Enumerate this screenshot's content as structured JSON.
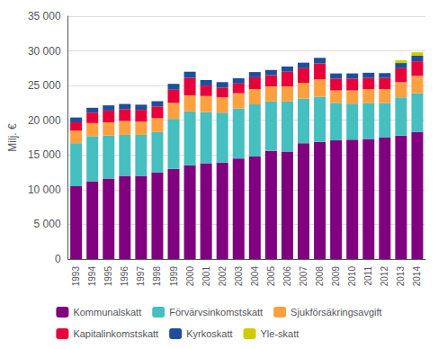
{
  "chart_data": {
    "type": "bar",
    "stacked": true,
    "grid": true,
    "legend": "bottom",
    "ylabel": "Milj. €",
    "categories": [
      "1993",
      "1994",
      "1995",
      "1996",
      "1997",
      "1998",
      "1999",
      "2000",
      "2001",
      "2002",
      "2003",
      "2004",
      "2005",
      "2006",
      "2007",
      "2008",
      "2009",
      "2010",
      "2011",
      "2012",
      "2013",
      "2014"
    ],
    "ylim": [
      0,
      35000
    ],
    "yticks": [
      0,
      {
        "value": 5000,
        "label": "5 000"
      },
      {
        "value": 10000,
        "label": "10 000"
      },
      {
        "value": 15000,
        "label": "15 000"
      },
      {
        "value": 20000,
        "label": "20 000"
      },
      {
        "value": 25000,
        "label": "25 000"
      },
      {
        "value": 30000,
        "label": "30 000"
      },
      {
        "value": 35000,
        "label": "35 000"
      }
    ],
    "series": [
      {
        "name": "Kommunalskatt",
        "color": "#800080",
        "values": [
          10500,
          11200,
          11600,
          12000,
          12000,
          12500,
          13000,
          13500,
          13800,
          13900,
          14500,
          14800,
          15600,
          15500,
          16700,
          16900,
          17100,
          17200,
          17300,
          17500,
          17800,
          18300
        ]
      },
      {
        "name": "Förvärvsinkomstskatt",
        "color": "#45BFBF",
        "values": [
          6200,
          6500,
          6200,
          5900,
          5900,
          5800,
          7200,
          7800,
          7400,
          7200,
          7200,
          7500,
          7100,
          7200,
          6400,
          6500,
          5400,
          5200,
          5200,
          5000,
          5500,
          5600
        ]
      },
      {
        "name": "Sjukförsäkringsavgift",
        "color": "#FFA040",
        "values": [
          1800,
          1900,
          1900,
          2000,
          1900,
          2000,
          2300,
          2300,
          2300,
          2200,
          2200,
          2200,
          2200,
          2200,
          2300,
          2500,
          1800,
          1900,
          2000,
          2000,
          2200,
          2500
        ]
      },
      {
        "name": "Kapitalinkomstskatt",
        "color": "#E8003A",
        "values": [
          1200,
          1500,
          1700,
          1700,
          1700,
          1700,
          1900,
          2500,
          1500,
          1400,
          1400,
          1700,
          1600,
          2100,
          2100,
          2300,
          1700,
          1700,
          1600,
          1600,
          2000,
          2100
        ]
      },
      {
        "name": "Kyrkoskatt",
        "color": "#1F4E9A",
        "values": [
          700,
          700,
          750,
          750,
          750,
          750,
          850,
          900,
          800,
          800,
          750,
          750,
          750,
          750,
          800,
          800,
          750,
          750,
          750,
          700,
          750,
          800
        ]
      },
      {
        "name": "Yle-skatt",
        "color": "#CCCC00",
        "values": [
          0,
          0,
          0,
          0,
          0,
          0,
          0,
          0,
          0,
          0,
          0,
          0,
          0,
          0,
          0,
          0,
          0,
          0,
          0,
          0,
          400,
          500
        ]
      }
    ]
  }
}
